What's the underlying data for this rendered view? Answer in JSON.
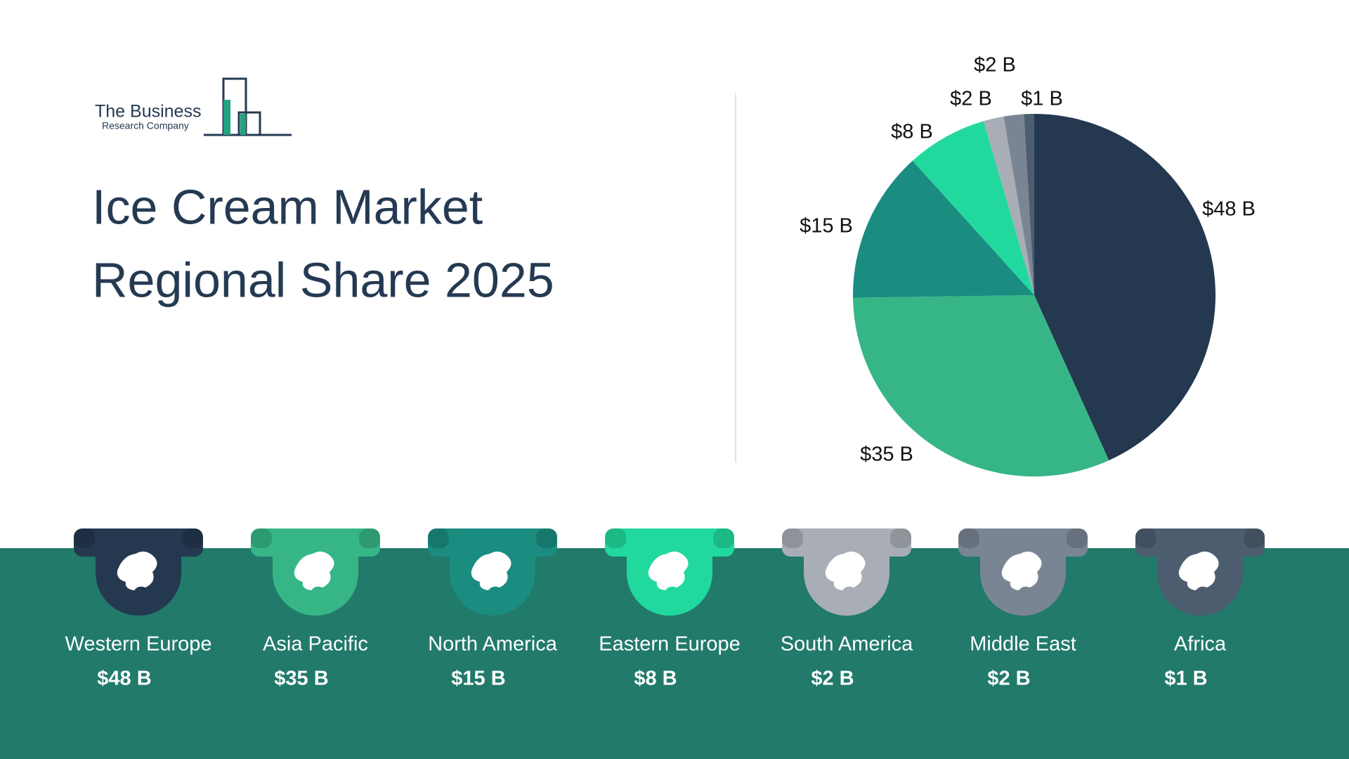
{
  "logo": {
    "line1": "The Business",
    "line2": "Research Company"
  },
  "chart_data": {
    "type": "pie",
    "title": "Ice Cream Market",
    "subtitle": "Regional Share 2025",
    "categories": [
      "Western Europe",
      "Asia Pacific",
      "North America",
      "Eastern Europe",
      "South America",
      "Middle East",
      "Africa"
    ],
    "values": [
      48,
      35,
      15,
      8,
      2,
      2,
      1
    ],
    "value_labels": [
      "$48 B",
      "$35 B",
      "$15 B",
      "$8 B",
      "$2 B",
      "$2 B",
      "$1 B"
    ],
    "colors": [
      "#243850",
      "#36b686",
      "#1b8c80",
      "#21d99e",
      "#a9adb5",
      "#7a8594",
      "#4d5d70"
    ]
  }
}
